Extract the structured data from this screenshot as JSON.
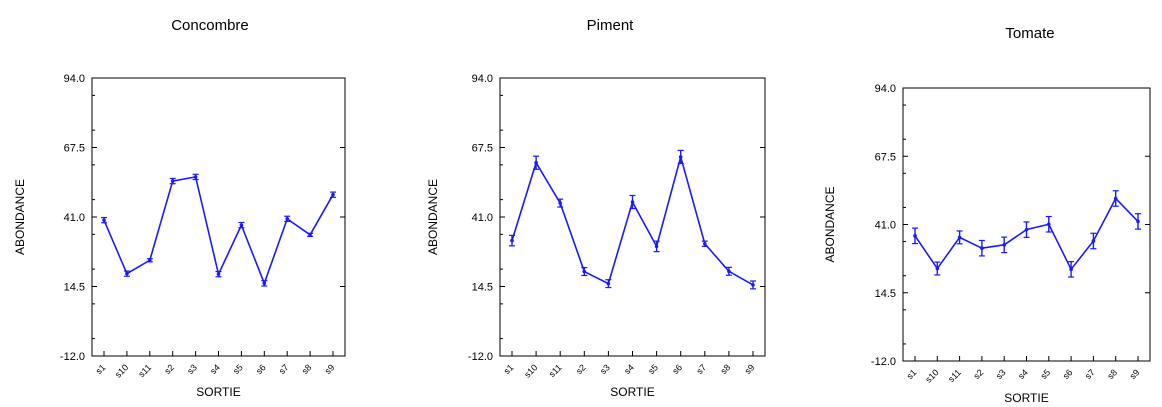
{
  "chart_data": [
    {
      "type": "line",
      "title": "Concombre",
      "xlabel": "SORTIE",
      "ylabel": "ABONDANCE",
      "ylim": [
        -12.0,
        94.0
      ],
      "yticks": [
        "94.0",
        "67.5",
        "41.0",
        "14.5",
        "-12.0"
      ],
      "categories": [
        "s1",
        "s10",
        "s11",
        "s2",
        "s3",
        "s4",
        "s5",
        "s6",
        "s7",
        "s8",
        "s9"
      ],
      "series": [
        {
          "values": [
            39.8,
            19.4,
            24.5,
            54.7,
            56.3,
            19.2,
            37.9,
            15.7,
            40.3,
            34.2,
            49.5
          ],
          "errors": [
            1.0,
            1.0,
            0.6,
            1.0,
            1.0,
            1.0,
            1.0,
            1.0,
            1.0,
            0.6,
            1.0
          ]
        }
      ],
      "color": "#1a1aff",
      "grid": false
    },
    {
      "type": "line",
      "title": "Piment",
      "xlabel": "SORTIE",
      "ylabel": "ABONDANCE",
      "ylim": [
        -12.0,
        94.0
      ],
      "yticks": [
        "94.0",
        "67.5",
        "41.0",
        "14.5",
        "-12.0"
      ],
      "categories": [
        "s1",
        "s10",
        "s11",
        "s2",
        "s3",
        "s4",
        "s5",
        "s6",
        "s7",
        "s8",
        "s9"
      ],
      "series": [
        {
          "values": [
            32.0,
            61.7,
            46.3,
            20.2,
            15.6,
            46.7,
            29.8,
            63.9,
            30.8,
            20.3,
            15.1
          ],
          "errors": [
            2.0,
            2.5,
            1.5,
            1.5,
            1.5,
            2.5,
            2.0,
            2.5,
            1.0,
            1.5,
            1.5
          ]
        }
      ],
      "color": "#1a1aff",
      "grid": false
    },
    {
      "type": "line",
      "title": "Tomate",
      "xlabel": "SORTIE",
      "ylabel": "ABONDANCE",
      "ylim": [
        -12.0,
        94.0
      ],
      "yticks": [
        "94.0",
        "67.5",
        "41.0",
        "14.5",
        "-12.0"
      ],
      "categories": [
        "s1",
        "s10",
        "s11",
        "s2",
        "s3",
        "s4",
        "s5",
        "s6",
        "s7",
        "s8",
        "s9"
      ],
      "series": [
        {
          "values": [
            36.6,
            23.9,
            36.0,
            31.8,
            33.1,
            39.0,
            41.1,
            23.6,
            34.6,
            51.1,
            42.2
          ],
          "errors": [
            3.0,
            2.5,
            2.5,
            3.0,
            3.0,
            3.0,
            3.0,
            3.0,
            3.0,
            3.0,
            3.0
          ]
        }
      ],
      "color": "#1a1aff",
      "grid": false
    }
  ]
}
